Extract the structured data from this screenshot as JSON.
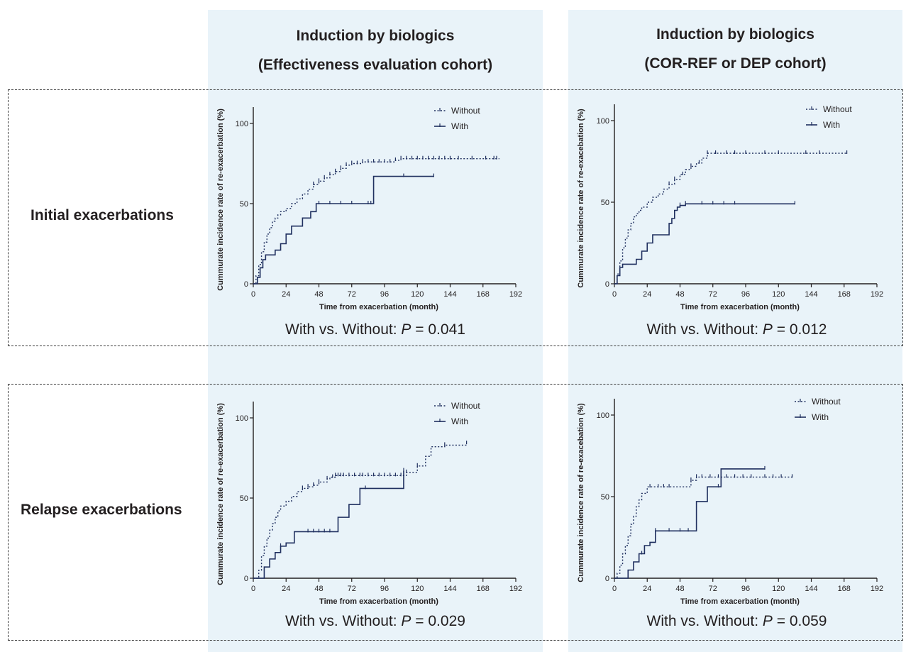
{
  "columns": [
    {
      "line1": "Induction by biologics",
      "line2": "(Effectiveness evaluation cohort)"
    },
    {
      "line1": "Induction by biologics",
      "line2": "(COR-REF or DEP cohort)"
    }
  ],
  "rows": [
    {
      "label": "Initial exacerbations"
    },
    {
      "label": "Relapse exacerbations"
    }
  ],
  "colors": {
    "panel_bg": "#e9f3f9",
    "series": "#1f2f5f",
    "text": "#231f20"
  },
  "chart_data": [
    {
      "type": "line",
      "step": true,
      "ylabel": "Cummurate incidence rate of re-exacerbation (%)",
      "xlabel": "Time from exacerbation (month)",
      "xticks": [
        0,
        24,
        48,
        72,
        96,
        120,
        144,
        168,
        192
      ],
      "yticks": [
        0,
        50,
        100
      ],
      "xlim": [
        0,
        192
      ],
      "ylim": [
        0,
        110
      ],
      "legend": [
        "Without",
        "With"
      ],
      "comparison": {
        "prefix": "With vs. Without: ",
        "p_symbol": "P",
        "operator": " = ",
        "p_value": "0.041"
      },
      "series": [
        {
          "name": "Without",
          "style": "dotted",
          "x": [
            0,
            2,
            4,
            6,
            8,
            10,
            12,
            14,
            16,
            18,
            20,
            24,
            28,
            32,
            36,
            40,
            44,
            48,
            52,
            56,
            60,
            64,
            68,
            72,
            80,
            96,
            104,
            108,
            120,
            140,
            168,
            180
          ],
          "y": [
            0,
            5,
            12,
            20,
            26,
            31,
            35,
            39,
            41,
            43,
            45,
            47,
            50,
            53,
            56,
            59,
            62,
            64,
            66,
            68,
            70,
            72,
            74,
            75,
            76,
            76,
            77,
            78,
            78,
            78,
            78,
            78
          ],
          "censor_x": [
            44,
            48,
            52,
            56,
            60,
            64,
            68,
            72,
            76,
            80,
            84,
            88,
            92,
            96,
            100,
            104,
            108,
            112,
            116,
            120,
            124,
            128,
            132,
            136,
            140,
            144,
            150,
            160,
            170,
            176,
            178
          ]
        },
        {
          "name": "With",
          "style": "solid",
          "x": [
            0,
            3,
            5,
            7,
            9,
            12,
            16,
            20,
            24,
            28,
            32,
            36,
            42,
            46,
            50,
            56,
            88,
            100,
            110,
            132
          ],
          "y": [
            0,
            4,
            10,
            15,
            18,
            18,
            21,
            25,
            31,
            36,
            36,
            41,
            45,
            50,
            50,
            50,
            67,
            67,
            67,
            67
          ],
          "censor_x": [
            48,
            56,
            64,
            72,
            84,
            86,
            110,
            132
          ]
        }
      ]
    },
    {
      "type": "line",
      "step": true,
      "ylabel": "Cummurate incidence rate of re-exacebation (%)",
      "xlabel": "Time from exacerbation (month)",
      "xticks": [
        0,
        24,
        48,
        72,
        96,
        120,
        144,
        168,
        192
      ],
      "yticks": [
        0,
        50,
        100
      ],
      "xlim": [
        0,
        192
      ],
      "ylim": [
        0,
        110
      ],
      "legend": [
        "Without",
        "With"
      ],
      "comparison": {
        "prefix": "With vs. Without: ",
        "p_symbol": "P",
        "operator": " = ",
        "p_value": "0.012"
      },
      "series": [
        {
          "name": "Without",
          "style": "dotted",
          "x": [
            0,
            2,
            4,
            6,
            8,
            10,
            12,
            14,
            16,
            18,
            20,
            24,
            28,
            32,
            36,
            40,
            44,
            48,
            52,
            56,
            60,
            64,
            68,
            72,
            100,
            130,
            170
          ],
          "y": [
            0,
            6,
            14,
            22,
            28,
            33,
            37,
            41,
            43,
            45,
            47,
            50,
            53,
            55,
            58,
            61,
            64,
            67,
            70,
            72,
            74,
            77,
            80,
            80,
            80,
            80,
            80
          ],
          "censor_x": [
            40,
            44,
            50,
            56,
            62,
            68,
            74,
            82,
            88,
            96,
            110,
            120,
            140,
            150,
            170
          ]
        },
        {
          "name": "With",
          "style": "solid",
          "x": [
            0,
            2,
            4,
            6,
            12,
            16,
            20,
            24,
            28,
            30,
            40,
            42,
            44,
            46,
            48,
            52,
            100,
            130,
            132
          ],
          "y": [
            0,
            5,
            10,
            12,
            12,
            15,
            20,
            25,
            30,
            30,
            37,
            40,
            45,
            47,
            48,
            49,
            49,
            49,
            49
          ],
          "censor_x": [
            48,
            52,
            64,
            72,
            80,
            88,
            132
          ]
        }
      ]
    },
    {
      "type": "line",
      "step": true,
      "ylabel": "Cummurate incidence rate of re-exacerbation (%)",
      "xlabel": "Time from exacerbation (month)",
      "xticks": [
        0,
        24,
        48,
        72,
        96,
        120,
        144,
        168,
        192
      ],
      "yticks": [
        0,
        50,
        100
      ],
      "xlim": [
        0,
        192
      ],
      "ylim": [
        0,
        110
      ],
      "legend": [
        "Without",
        "With"
      ],
      "comparison": {
        "prefix": "With vs. Without: ",
        "p_symbol": "P",
        "operator": " = ",
        "p_value": "0.029"
      },
      "series": [
        {
          "name": "Without",
          "style": "dotted",
          "x": [
            0,
            4,
            6,
            8,
            10,
            12,
            14,
            16,
            18,
            20,
            24,
            28,
            32,
            36,
            40,
            44,
            48,
            54,
            56,
            60,
            100,
            112,
            120,
            126,
            130,
            140,
            156
          ],
          "y": [
            0,
            5,
            14,
            20,
            25,
            30,
            34,
            38,
            42,
            45,
            48,
            51,
            54,
            56,
            57,
            58,
            60,
            62,
            63,
            64,
            64,
            66,
            70,
            76,
            82,
            83,
            84
          ],
          "censor_x": [
            36,
            40,
            44,
            48,
            54,
            58,
            60,
            62,
            64,
            66,
            70,
            74,
            78,
            80,
            84,
            88,
            92,
            96,
            100,
            104,
            108,
            112,
            120,
            140,
            156
          ]
        },
        {
          "name": "With",
          "style": "solid",
          "x": [
            0,
            8,
            12,
            16,
            20,
            24,
            30,
            58,
            62,
            70,
            78,
            110
          ],
          "y": [
            0,
            7,
            12,
            16,
            20,
            22,
            29,
            29,
            38,
            46,
            56,
            67
          ],
          "censor_x": [
            20,
            40,
            44,
            48,
            52,
            56,
            82,
            110
          ]
        }
      ]
    },
    {
      "type": "line",
      "step": true,
      "ylabel": "Cummurate incidence rate of re-exacebation (%)",
      "xlabel": "Time from exacerbation (month)",
      "xticks": [
        0,
        24,
        48,
        72,
        96,
        120,
        144,
        168,
        192
      ],
      "yticks": [
        0,
        50,
        100
      ],
      "xlim": [
        0,
        192
      ],
      "ylim": [
        0,
        110
      ],
      "legend": [
        "Without",
        "With"
      ],
      "comparison": {
        "prefix": "With vs. Without: ",
        "p_symbol": "P",
        "operator": " = ",
        "p_value": "0.059"
      },
      "series": [
        {
          "name": "Without",
          "style": "dotted",
          "x": [
            0,
            2,
            4,
            6,
            8,
            10,
            12,
            14,
            16,
            18,
            20,
            24,
            28,
            48,
            56,
            60,
            112,
            130
          ],
          "y": [
            0,
            3,
            8,
            15,
            20,
            26,
            33,
            38,
            44,
            48,
            52,
            56,
            56,
            56,
            60,
            62,
            62,
            62
          ],
          "censor_x": [
            26,
            32,
            36,
            40,
            56,
            60,
            64,
            70,
            76,
            82,
            88,
            94,
            100,
            110,
            116,
            122,
            130
          ]
        },
        {
          "name": "With",
          "style": "solid",
          "x": [
            0,
            10,
            14,
            18,
            22,
            26,
            30,
            56,
            60,
            68,
            78,
            110
          ],
          "y": [
            0,
            5,
            10,
            15,
            20,
            22,
            29,
            29,
            47,
            56,
            67,
            67
          ],
          "censor_x": [
            20,
            30,
            40,
            48,
            54,
            76,
            110
          ]
        }
      ]
    }
  ]
}
